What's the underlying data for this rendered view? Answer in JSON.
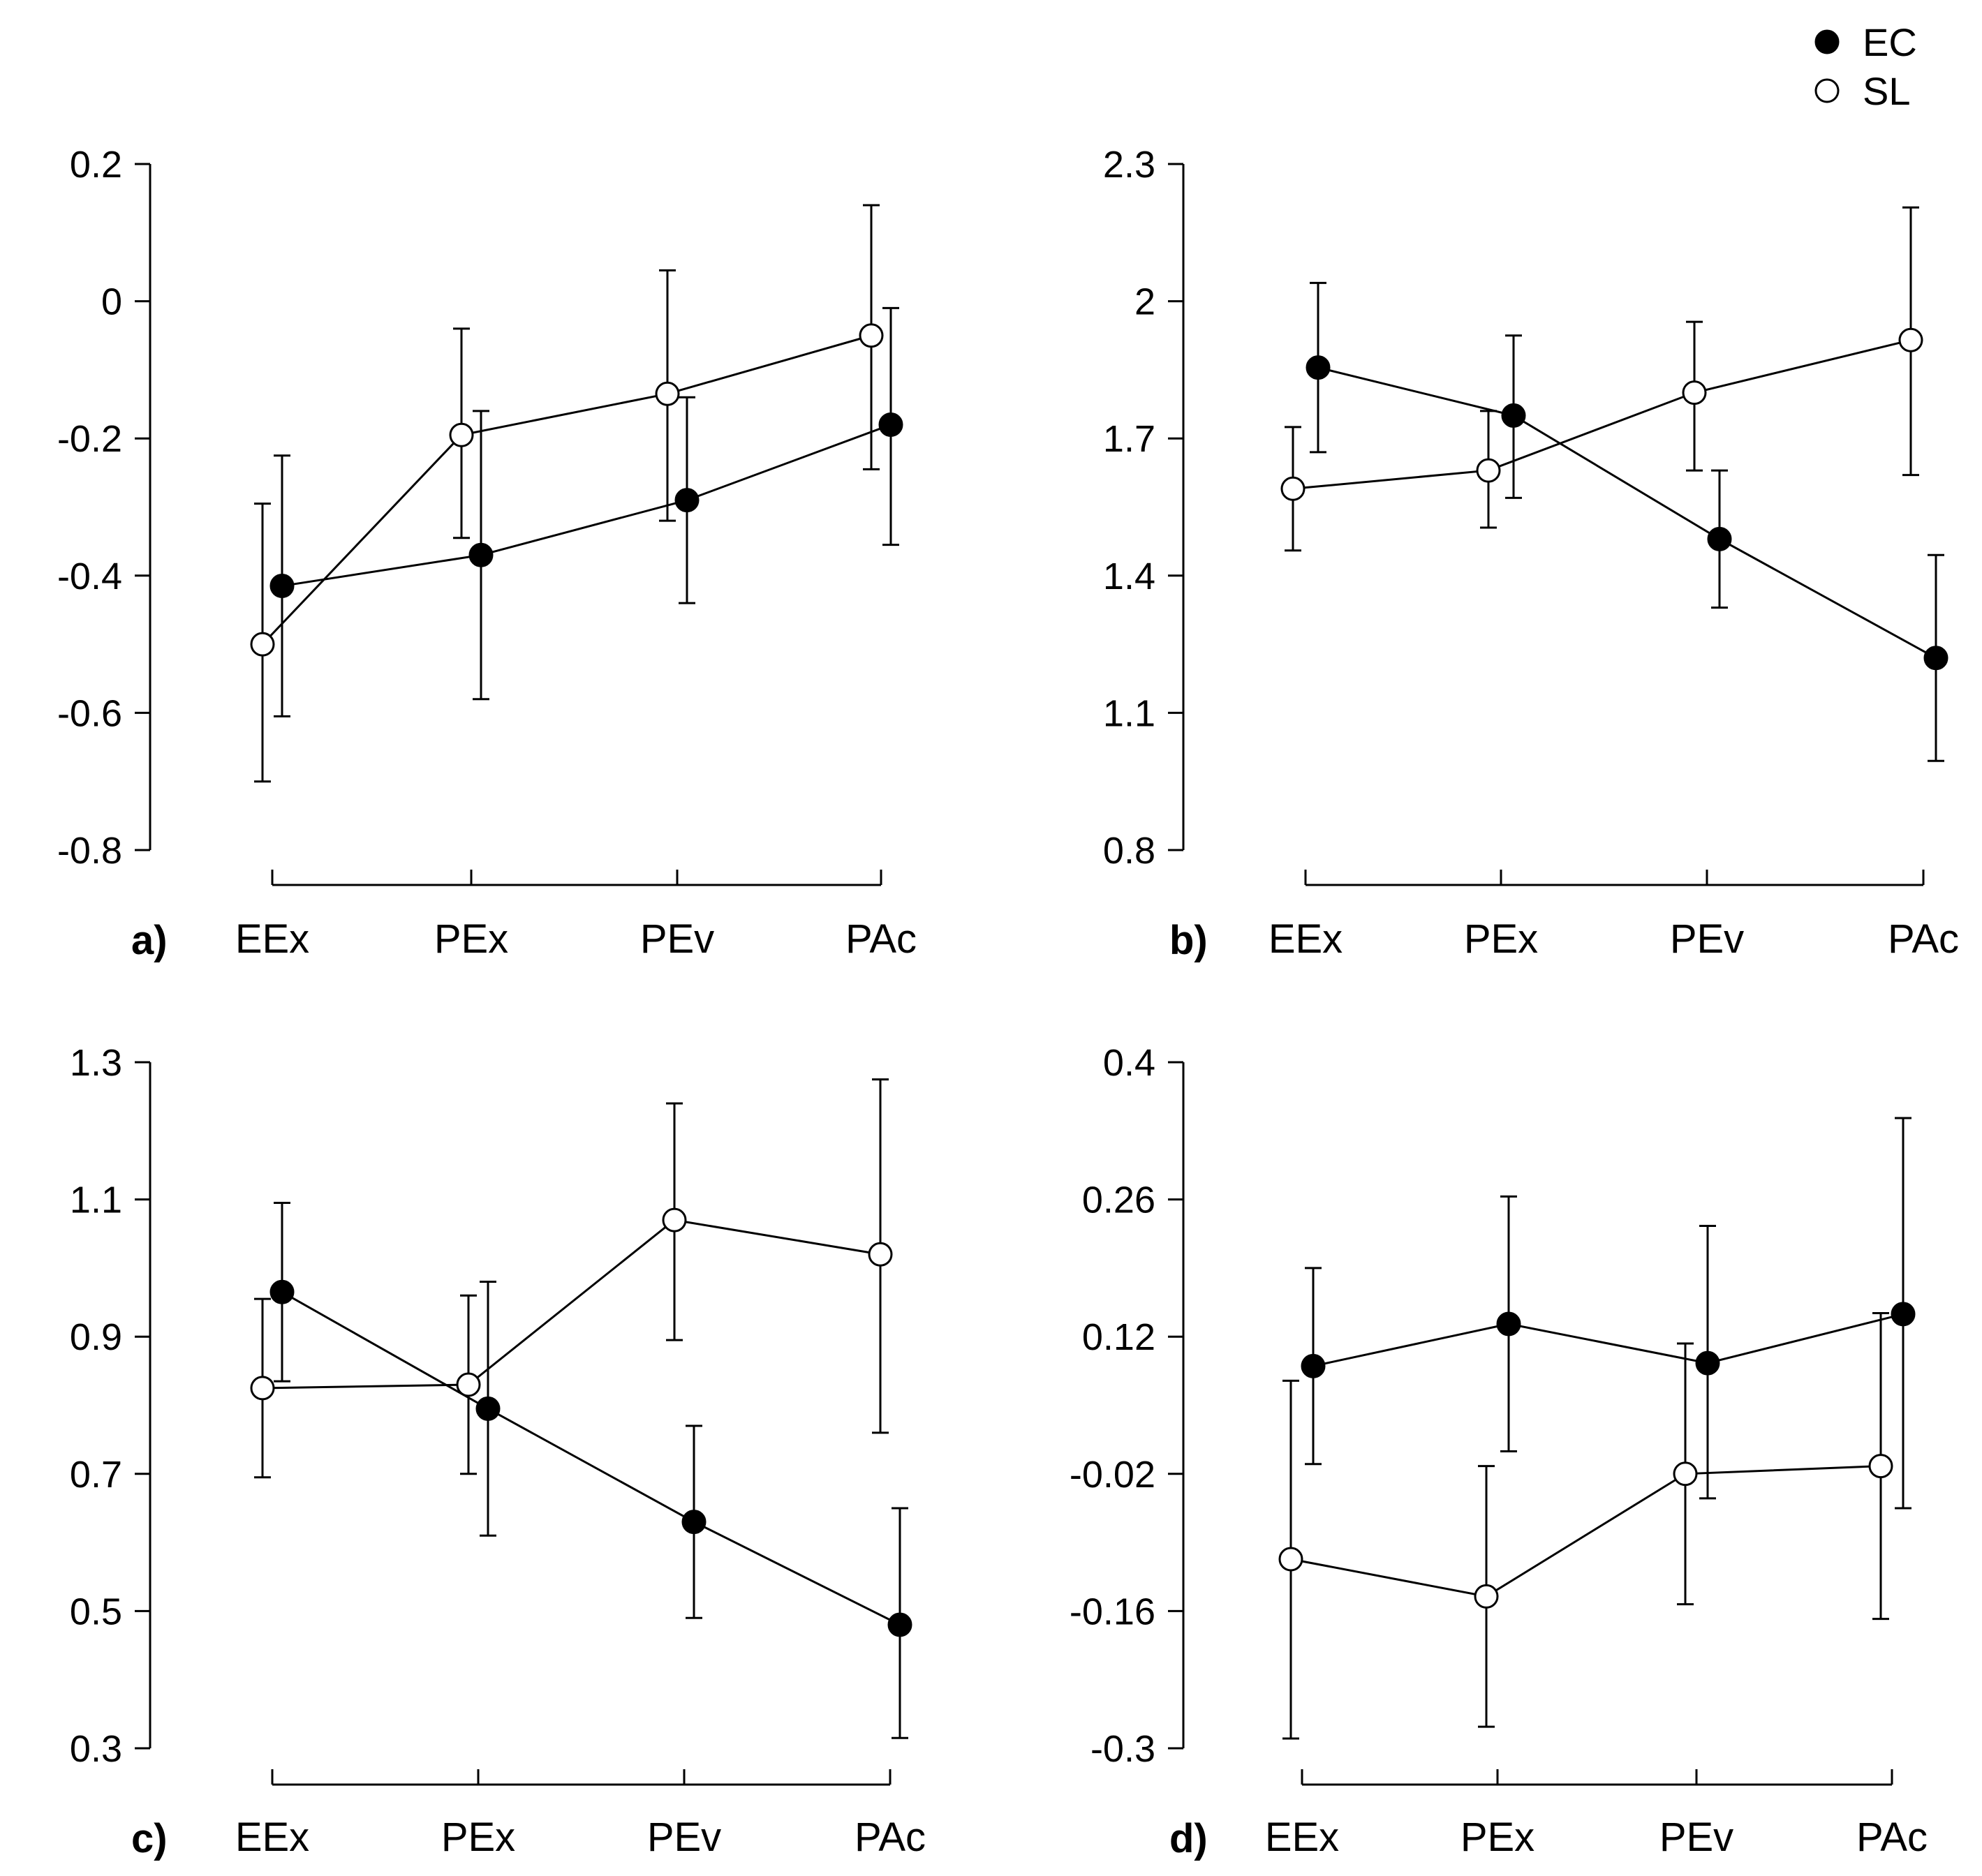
{
  "colors": {
    "ec_fill": "#000000",
    "sl_fill": "#ffffff",
    "stroke": "#000000"
  },
  "legend": [
    {
      "label": "EC",
      "marker": "filled-circle",
      "color": "#000000"
    },
    {
      "label": "SL",
      "marker": "open-circle",
      "color": "#ffffff"
    }
  ],
  "chart_data": [
    {
      "type": "line",
      "panel_label": "a)",
      "categories": [
        "EEx",
        "PEx",
        "PEv",
        "PAc"
      ],
      "ylim": [
        -0.8,
        0.2
      ],
      "yticks": [
        -0.8,
        -0.6,
        -0.4,
        -0.2,
        0,
        0.2
      ],
      "ytick_labels": [
        "-0.8",
        "-0.6",
        "-0.4",
        "-0.2",
        "0",
        "0.2"
      ],
      "series": [
        {
          "name": "EC",
          "marker": "filled",
          "values": [
            -0.415,
            -0.37,
            -0.29,
            -0.18
          ],
          "err_low": [
            -0.605,
            -0.58,
            -0.44,
            -0.355
          ],
          "err_high": [
            -0.225,
            -0.16,
            -0.14,
            -0.01
          ]
        },
        {
          "name": "SL",
          "marker": "open",
          "values": [
            -0.5,
            -0.195,
            -0.135,
            -0.05
          ],
          "err_low": [
            -0.7,
            -0.345,
            -0.32,
            -0.245
          ],
          "err_high": [
            -0.295,
            -0.04,
            0.045,
            0.14
          ]
        }
      ]
    },
    {
      "type": "line",
      "panel_label": "b)",
      "categories": [
        "EEx",
        "PEx",
        "PEv",
        "PAc"
      ],
      "ylim": [
        0.8,
        2.3
      ],
      "yticks": [
        0.8,
        1.1,
        1.4,
        1.7,
        2.0,
        2.3
      ],
      "ytick_labels": [
        "0.8",
        "1.1",
        "1.4",
        "1.7",
        "2",
        "2.3"
      ],
      "series": [
        {
          "name": "EC",
          "marker": "filled",
          "values": [
            1.855,
            1.75,
            1.48,
            1.22
          ],
          "err_low": [
            1.67,
            1.57,
            1.33,
            0.995
          ],
          "err_high": [
            2.04,
            1.925,
            1.63,
            1.445
          ]
        },
        {
          "name": "SL",
          "marker": "open",
          "values": [
            1.59,
            1.63,
            1.8,
            1.915
          ],
          "err_low": [
            1.455,
            1.505,
            1.63,
            1.62
          ],
          "err_high": [
            1.725,
            1.76,
            1.955,
            2.205
          ]
        }
      ]
    },
    {
      "type": "line",
      "panel_label": "c)",
      "categories": [
        "EEx",
        "PEx",
        "PEv",
        "PAc"
      ],
      "ylim": [
        0.3,
        1.3
      ],
      "yticks": [
        0.3,
        0.5,
        0.7,
        0.9,
        1.1,
        1.3
      ],
      "ytick_labels": [
        "0.3",
        "0.5",
        "0.7",
        "0.9",
        "1.1",
        "1.3"
      ],
      "series": [
        {
          "name": "EC",
          "marker": "filled",
          "values": [
            0.965,
            0.795,
            0.63,
            0.48
          ],
          "err_low": [
            0.835,
            0.61,
            0.49,
            0.315
          ],
          "err_high": [
            1.095,
            0.98,
            0.77,
            0.65
          ]
        },
        {
          "name": "SL",
          "marker": "open",
          "values": [
            0.825,
            0.83,
            1.07,
            1.02
          ],
          "err_low": [
            0.695,
            0.7,
            0.895,
            0.76
          ],
          "err_high": [
            0.955,
            0.96,
            1.24,
            1.275
          ]
        }
      ]
    },
    {
      "type": "line",
      "panel_label": "d)",
      "categories": [
        "EEx",
        "PEx",
        "PEv",
        "PAc"
      ],
      "ylim": [
        -0.3,
        0.4
      ],
      "yticks": [
        -0.3,
        -0.16,
        -0.02,
        0.12,
        0.26,
        0.4
      ],
      "ytick_labels": [
        "-0.3",
        "-0.16",
        "-0.02",
        "0.12",
        "0.26",
        "0.4"
      ],
      "series": [
        {
          "name": "EC",
          "marker": "filled",
          "values": [
            0.09,
            0.133,
            0.093,
            0.143
          ],
          "err_low": [
            -0.01,
            0.003,
            -0.045,
            -0.055
          ],
          "err_high": [
            0.19,
            0.263,
            0.233,
            0.343
          ]
        },
        {
          "name": "SL",
          "marker": "open",
          "values": [
            -0.107,
            -0.145,
            -0.02,
            -0.012
          ],
          "err_low": [
            -0.29,
            -0.278,
            -0.153,
            -0.168
          ],
          "err_high": [
            0.075,
            -0.012,
            0.113,
            0.144
          ]
        }
      ]
    }
  ]
}
